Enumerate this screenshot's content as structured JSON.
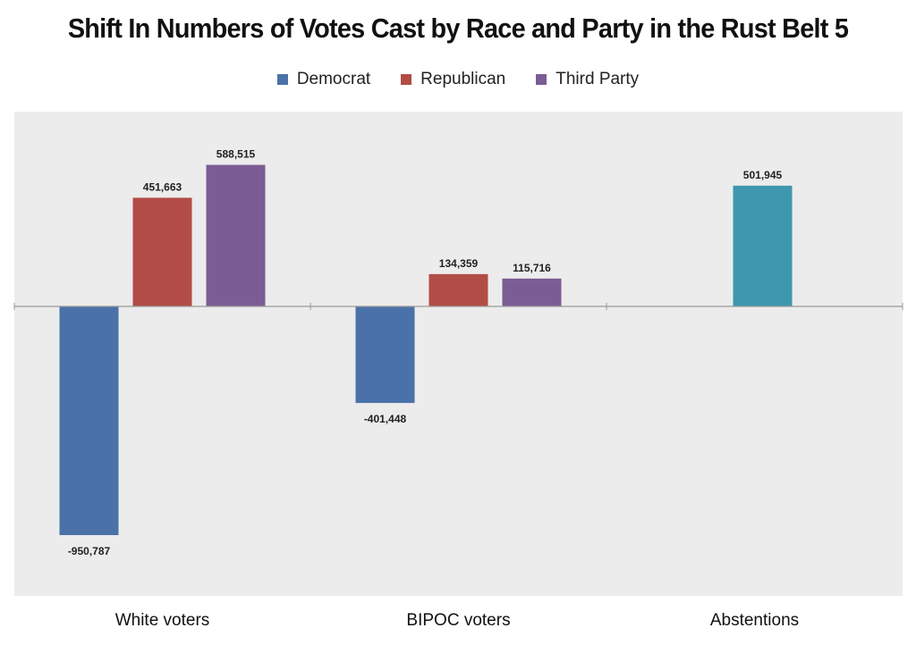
{
  "chart_data": {
    "type": "bar",
    "title": "Shift In Numbers of Votes Cast by Race and Party in the Rust Belt 5",
    "xlabel": "",
    "ylabel": "",
    "categories": [
      "White voters",
      "BIPOC voters",
      "Abstentions"
    ],
    "ylim": [
      -1200000,
      800000
    ],
    "grid": false,
    "legend_position": "top-center",
    "series": [
      {
        "name": "Democrat",
        "color": "#4a72a8",
        "values": [
          -950787,
          -401448,
          null
        ]
      },
      {
        "name": "Republican",
        "color": "#b24c46",
        "values": [
          451663,
          134359,
          null
        ]
      },
      {
        "name": "Third Party",
        "color": "#7a5d94",
        "values": [
          588515,
          115716,
          null
        ]
      }
    ],
    "extra_bars": [
      {
        "category": "Abstentions",
        "color": "#3e97ae",
        "value": 501945,
        "label": "501,945"
      }
    ],
    "data_labels": [
      [
        "-950,787",
        "451,663",
        "588,515"
      ],
      [
        "-401,448",
        "134,359",
        "115,716"
      ]
    ]
  },
  "colors": {
    "plot_background": "#ececec",
    "axis": "#999999"
  }
}
